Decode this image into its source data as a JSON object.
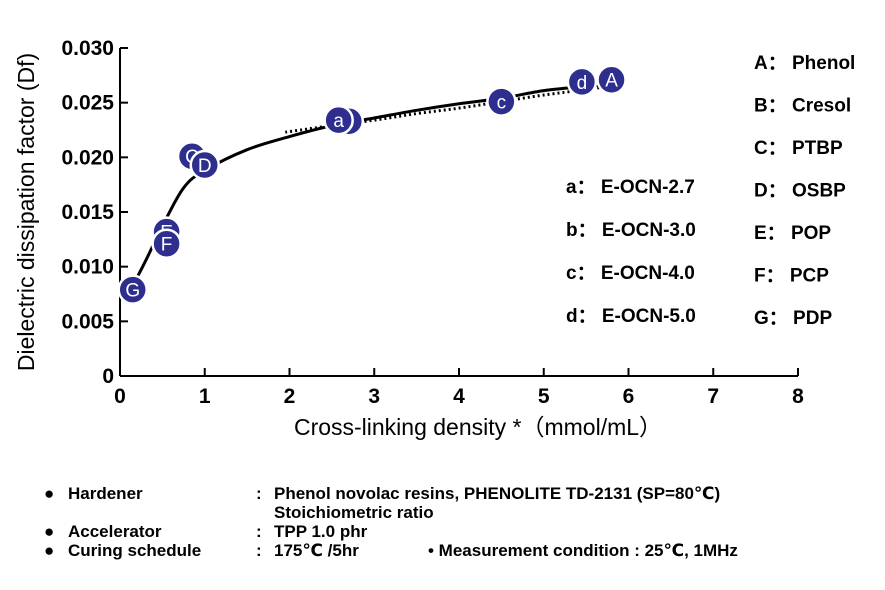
{
  "chart_data": {
    "type": "scatter",
    "ylabel": "Dielectric dissipation factor (Df)",
    "xlabel": "Cross-linking density *（mmol/mL）",
    "xlim": [
      0,
      8
    ],
    "ylim": [
      0,
      0.03
    ],
    "x_ticks": [
      "0",
      "1",
      "2",
      "3",
      "4",
      "5",
      "6",
      "7",
      "8"
    ],
    "y_ticks": [
      "0",
      "0.005",
      "0.010",
      "0.015",
      "0.020",
      "0.025",
      "0.030"
    ],
    "grid": false,
    "points": [
      {
        "label": "A",
        "x": 5.8,
        "y": 0.0271
      },
      {
        "label": "d",
        "x": 5.45,
        "y": 0.0269
      },
      {
        "label": "c",
        "x": 4.5,
        "y": 0.0251
      },
      {
        "label": "b",
        "x": 2.7,
        "y": 0.0233
      },
      {
        "label": "a",
        "x": 2.58,
        "y": 0.0234
      },
      {
        "label": "C",
        "x": 0.85,
        "y": 0.0201
      },
      {
        "label": "D",
        "x": 1.0,
        "y": 0.0193
      },
      {
        "label": "E",
        "x": 0.55,
        "y": 0.0132
      },
      {
        "label": "F",
        "x": 0.55,
        "y": 0.0121
      },
      {
        "label": "G",
        "x": 0.15,
        "y": 0.0079
      }
    ],
    "curve": [
      [
        0.12,
        0.0078
      ],
      [
        0.3,
        0.0105
      ],
      [
        0.5,
        0.0137
      ],
      [
        0.75,
        0.0172
      ],
      [
        1.0,
        0.0188
      ],
      [
        1.5,
        0.0207
      ],
      [
        2.0,
        0.0219
      ],
      [
        2.5,
        0.0229
      ],
      [
        3.0,
        0.0236
      ],
      [
        3.5,
        0.0243
      ],
      [
        4.0,
        0.0249
      ],
      [
        4.5,
        0.0254
      ],
      [
        5.0,
        0.0261
      ],
      [
        5.5,
        0.0265
      ],
      [
        5.9,
        0.0268
      ]
    ],
    "dotted_curve": [
      [
        1.95,
        0.0223
      ],
      [
        2.5,
        0.0229
      ],
      [
        3.0,
        0.0234
      ],
      [
        3.5,
        0.024
      ],
      [
        4.0,
        0.0245
      ],
      [
        4.5,
        0.0251
      ],
      [
        5.0,
        0.0257
      ],
      [
        5.5,
        0.0262
      ],
      [
        5.85,
        0.0266
      ]
    ],
    "legend_right": [
      "A： Phenol",
      "B： Cresol",
      "C： PTBP",
      "D： OSBP",
      "E： POP",
      "F： PCP",
      "G： PDP"
    ],
    "legend_mid": [
      "a： E-OCN-2.7",
      "b： E-OCN-3.0",
      "c： E-OCN-4.0",
      "d： E-OCN-5.0"
    ],
    "colors": {
      "marker_fill": "#2e2e8f",
      "marker_stroke": "#ffffff",
      "line": "#000000"
    }
  },
  "notes": [
    {
      "bullet": "●",
      "label": "Hardener",
      "colon": ":",
      "value": "Phenol novolac resins, PHENOLITE TD-2131 (SP=80℃)"
    },
    {
      "bullet": "",
      "label": "",
      "colon": "",
      "value": "Stoichiometric ratio"
    },
    {
      "bullet": "●",
      "label": "Accelerator",
      "colon": ":",
      "value": "TPP  1.0 phr"
    },
    {
      "bullet": "●",
      "label": "Curing schedule",
      "colon": ":",
      "value": "175℃ /5hr",
      "extra": "• Measurement condition : 25℃, 1MHz"
    }
  ]
}
